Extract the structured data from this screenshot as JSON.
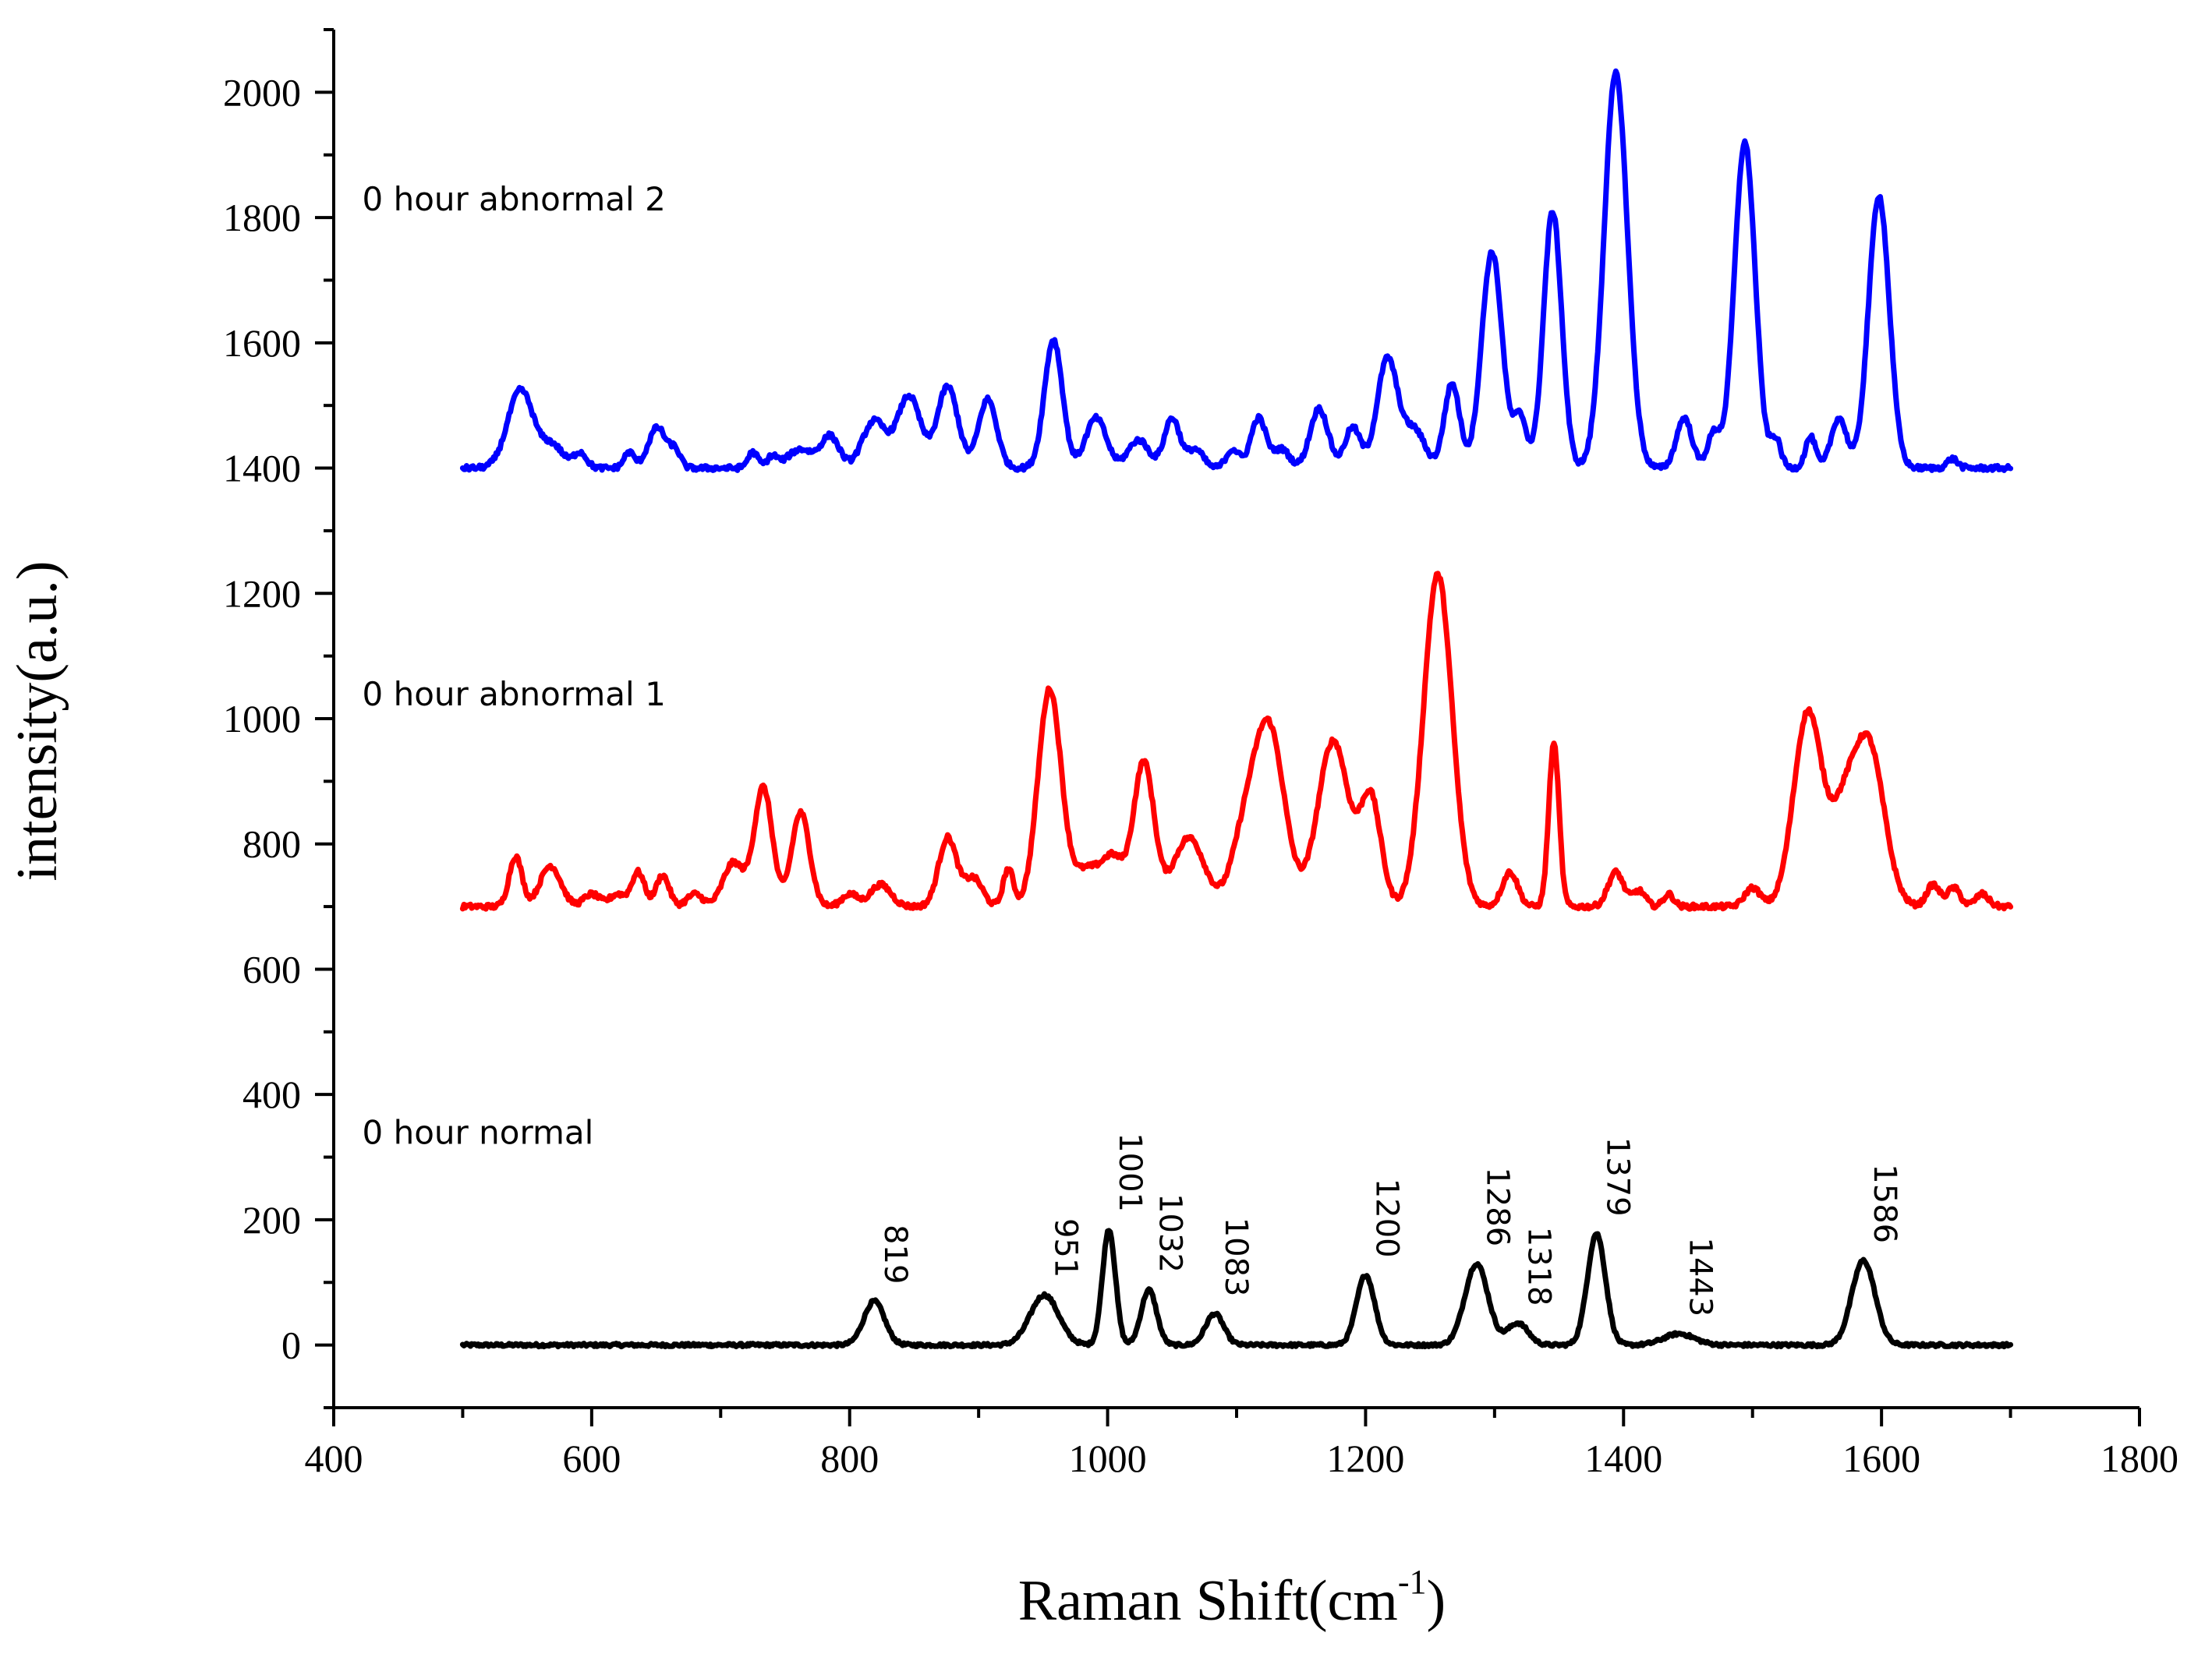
{
  "chart_data": {
    "type": "line",
    "title": "",
    "xlabel_main": "Raman Shift(cm",
    "xlabel_sup": "-1",
    "xlabel_close": ")",
    "ylabel": "intensity(a.u.)",
    "xlim": [
      400,
      1800
    ],
    "ylim": [
      -100,
      2100
    ],
    "xticks": [
      400,
      600,
      800,
      1000,
      1200,
      1400,
      1600,
      1800
    ],
    "xtick_labels": [
      "400",
      "600",
      "800",
      "1000",
      "1200",
      "1400",
      "1600",
      "1800"
    ],
    "yticks": [
      0,
      200,
      400,
      600,
      800,
      1000,
      1200,
      1400,
      1600,
      1800,
      2000
    ],
    "ytick_labels": [
      "0",
      "200",
      "400",
      "600",
      "800",
      "1000",
      "1200",
      "1400",
      "1600",
      "1800",
      "2000"
    ],
    "grid": false,
    "x_range": [
      500,
      1700
    ],
    "series": [
      {
        "name": "0 hour normal",
        "color": "#000000",
        "baseline": 0,
        "label_anchor": [
          410,
          340
        ],
        "peaks": [
          [
            819,
            70,
            8
          ],
          [
            951,
            80,
            11
          ],
          [
            1001,
            185,
            5
          ],
          [
            1032,
            88,
            6
          ],
          [
            1083,
            50,
            7
          ],
          [
            1200,
            112,
            7
          ],
          [
            1286,
            130,
            9
          ],
          [
            1318,
            35,
            8
          ],
          [
            1379,
            178,
            7
          ],
          [
            1443,
            18,
            12
          ],
          [
            1586,
            135,
            9
          ]
        ]
      },
      {
        "name": "0 hour abnormal 1",
        "color": "#ff0000",
        "baseline": 700,
        "label_anchor": [
          410,
          1040
        ],
        "peaks": [
          [
            541,
            80,
            5
          ],
          [
            568,
            65,
            8
          ],
          [
            600,
            20,
            6
          ],
          [
            620,
            20,
            6
          ],
          [
            636,
            55,
            5
          ],
          [
            655,
            50,
            5
          ],
          [
            680,
            20,
            6
          ],
          [
            710,
            70,
            8
          ],
          [
            733,
            190,
            7
          ],
          [
            762,
            150,
            7
          ],
          [
            800,
            20,
            6
          ],
          [
            824,
            35,
            8
          ],
          [
            876,
            110,
            7
          ],
          [
            896,
            45,
            7
          ],
          [
            923,
            60,
            4
          ],
          [
            955,
            345,
            9
          ],
          [
            985,
            60,
            12
          ],
          [
            1005,
            65,
            8
          ],
          [
            1028,
            230,
            8
          ],
          [
            1063,
            110,
            12
          ],
          [
            1105,
            90,
            10
          ],
          [
            1125,
            285,
            12
          ],
          [
            1175,
            265,
            12
          ],
          [
            1204,
            170,
            8
          ],
          [
            1256,
            530,
            11
          ],
          [
            1312,
            55,
            6
          ],
          [
            1346,
            260,
            4
          ],
          [
            1394,
            55,
            6
          ],
          [
            1412,
            25,
            5
          ],
          [
            1435,
            20,
            4
          ],
          [
            1500,
            30,
            6
          ],
          [
            1543,
            310,
            11
          ],
          [
            1570,
            120,
            10
          ],
          [
            1590,
            255,
            12
          ],
          [
            1640,
            35,
            5
          ],
          [
            1656,
            30,
            5
          ],
          [
            1678,
            20,
            5
          ]
        ]
      },
      {
        "name": "0 hour abnormal 2",
        "color": "#0000ff",
        "baseline": 1400,
        "label_anchor": [
          410,
          1830
        ],
        "peaks": [
          [
            545,
            125,
            10
          ],
          [
            570,
            35,
            8
          ],
          [
            591,
            25,
            5
          ],
          [
            629,
            25,
            4
          ],
          [
            651,
            65,
            7
          ],
          [
            665,
            25,
            4
          ],
          [
            725,
            25,
            4
          ],
          [
            740,
            18,
            4
          ],
          [
            762,
            30,
            10
          ],
          [
            785,
            50,
            7
          ],
          [
            819,
            75,
            9
          ],
          [
            846,
            115,
            9
          ],
          [
            876,
            130,
            8
          ],
          [
            907,
            110,
            7
          ],
          [
            958,
            205,
            7
          ],
          [
            991,
            80,
            8
          ],
          [
            1024,
            45,
            8
          ],
          [
            1050,
            80,
            6
          ],
          [
            1068,
            30,
            6
          ],
          [
            1097,
            30,
            5
          ],
          [
            1117,
            80,
            6
          ],
          [
            1135,
            30,
            6
          ],
          [
            1164,
            95,
            7
          ],
          [
            1190,
            65,
            6
          ],
          [
            1217,
            175,
            8
          ],
          [
            1238,
            60,
            8
          ],
          [
            1267,
            135,
            6
          ],
          [
            1298,
            345,
            8
          ],
          [
            1320,
            80,
            5
          ],
          [
            1345,
            410,
            7
          ],
          [
            1394,
            630,
            9
          ],
          [
            1447,
            80,
            6
          ],
          [
            1470,
            55,
            5
          ],
          [
            1494,
            520,
            8
          ],
          [
            1518,
            45,
            4
          ],
          [
            1545,
            50,
            4
          ],
          [
            1567,
            80,
            6
          ],
          [
            1598,
            435,
            8
          ],
          [
            1655,
            15,
            4
          ]
        ]
      }
    ],
    "peak_annotations": [
      {
        "label": "819",
        "x": 819,
        "y": 70
      },
      {
        "label": "951",
        "x": 951,
        "y": 80
      },
      {
        "label": "1001",
        "x": 1001,
        "y": 185
      },
      {
        "label": "1032",
        "x": 1032,
        "y": 88
      },
      {
        "label": "1083",
        "x": 1083,
        "y": 50
      },
      {
        "label": "1200",
        "x": 1200,
        "y": 112
      },
      {
        "label": "1286",
        "x": 1286,
        "y": 130
      },
      {
        "label": "1318",
        "x": 1318,
        "y": 35
      },
      {
        "label": "1379",
        "x": 1379,
        "y": 178
      },
      {
        "label": "1443",
        "x": 1443,
        "y": 18
      },
      {
        "label": "1586",
        "x": 1586,
        "y": 135
      }
    ]
  }
}
